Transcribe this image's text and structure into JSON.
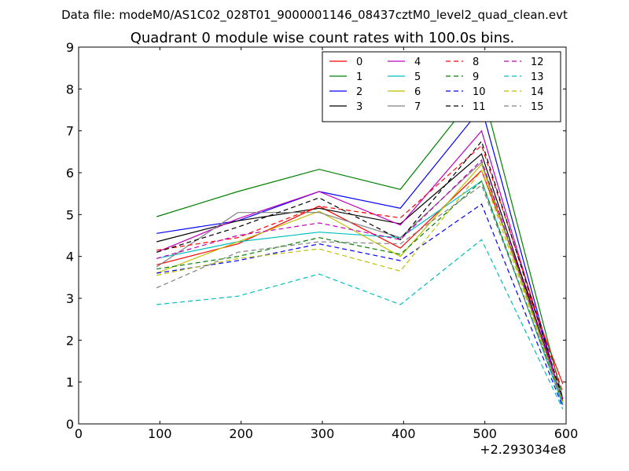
{
  "suptitle": "Data file: modeM0/AS1C02_028T01_9000001146_08437cztM0_level2_quad_clean.evt",
  "chart_data": {
    "type": "line",
    "title": "Quadrant 0 module wise count rates with 100.0s bins.",
    "xlabel": "",
    "ylabel": "",
    "x_offset_label": "+2.293034e8",
    "xlim": [
      0,
      600
    ],
    "ylim": [
      0,
      9
    ],
    "x_ticks": [
      "0",
      "100",
      "200",
      "300",
      "400",
      "500",
      "600"
    ],
    "y_ticks": [
      "0",
      "1",
      "2",
      "3",
      "4",
      "5",
      "6",
      "7",
      "8",
      "9"
    ],
    "grid": false,
    "legend_position": "top-right",
    "legend_columns": 4,
    "x": [
      96,
      196,
      296,
      396,
      496,
      596
    ],
    "series": [
      {
        "name": "0",
        "color": "#ff0000",
        "dash": "solid",
        "values": [
          3.8,
          4.3,
          5.2,
          4.2,
          6.05,
          0.95
        ]
      },
      {
        "name": "1",
        "color": "#008000",
        "dash": "solid",
        "values": [
          4.95,
          5.55,
          6.08,
          5.6,
          8.05,
          0.6
        ]
      },
      {
        "name": "2",
        "color": "#0000ff",
        "dash": "solid",
        "values": [
          4.55,
          4.85,
          5.55,
          5.15,
          7.55,
          0.45
        ]
      },
      {
        "name": "3",
        "color": "#000000",
        "dash": "solid",
        "values": [
          4.35,
          4.85,
          5.15,
          4.78,
          6.45,
          0.55
        ]
      },
      {
        "name": "4",
        "color": "#bf00bf",
        "dash": "solid",
        "values": [
          4.1,
          4.9,
          5.55,
          4.75,
          7.0,
          0.5
        ]
      },
      {
        "name": "5",
        "color": "#00bfbf",
        "dash": "solid",
        "values": [
          3.95,
          4.35,
          4.58,
          4.45,
          5.8,
          0.45
        ]
      },
      {
        "name": "6",
        "color": "#bfbf00",
        "dash": "solid",
        "values": [
          3.6,
          4.35,
          5.08,
          4.0,
          6.2,
          0.5
        ]
      },
      {
        "name": "7",
        "color": "#808080",
        "dash": "solid",
        "values": [
          3.75,
          5.05,
          5.05,
          4.45,
          6.25,
          0.55
        ]
      },
      {
        "name": "8",
        "color": "#ff0000",
        "dash": "dashed",
        "values": [
          4.15,
          4.45,
          5.2,
          4.92,
          6.65,
          0.75
        ]
      },
      {
        "name": "9",
        "color": "#008000",
        "dash": "dashed",
        "values": [
          3.7,
          4.0,
          4.45,
          4.05,
          5.8,
          0.5
        ]
      },
      {
        "name": "10",
        "color": "#0000ff",
        "dash": "dashed",
        "values": [
          3.6,
          3.9,
          4.3,
          3.9,
          5.25,
          0.4
        ]
      },
      {
        "name": "11",
        "color": "#000000",
        "dash": "dashed",
        "values": [
          4.1,
          4.7,
          5.4,
          4.4,
          6.75,
          0.6
        ]
      },
      {
        "name": "12",
        "color": "#bf00bf",
        "dash": "dashed",
        "values": [
          3.95,
          4.5,
          4.8,
          4.4,
          6.3,
          0.55
        ]
      },
      {
        "name": "13",
        "color": "#00bfbf",
        "dash": "dashed",
        "values": [
          2.85,
          3.05,
          3.58,
          2.85,
          4.4,
          0.35
        ]
      },
      {
        "name": "14",
        "color": "#bfbf00",
        "dash": "dashed",
        "values": [
          3.55,
          3.95,
          4.18,
          3.65,
          6.05,
          0.5
        ]
      },
      {
        "name": "15",
        "color": "#808080",
        "dash": "dashed",
        "values": [
          3.25,
          4.1,
          4.35,
          4.3,
          5.7,
          0.55
        ]
      }
    ]
  }
}
